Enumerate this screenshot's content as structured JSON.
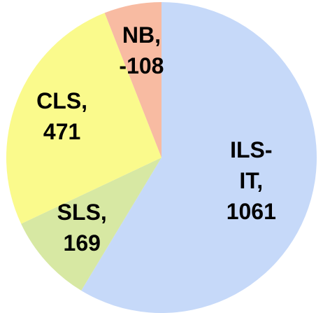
{
  "chart_data": {
    "type": "pie",
    "categories": [
      "ILS-IT",
      "SLS",
      "CLS",
      "NB"
    ],
    "values": [
      1061,
      169,
      471,
      -108
    ],
    "colors": [
      "#c6d9f9",
      "#d7e8a3",
      "#fafa8c",
      "#f8bba2"
    ],
    "data_labels": [
      [
        "ILS-",
        "IT,",
        "1061"
      ],
      [
        "SLS,",
        "169"
      ],
      [
        "CLS,",
        "471"
      ],
      [
        "NB,",
        "-108"
      ]
    ]
  }
}
